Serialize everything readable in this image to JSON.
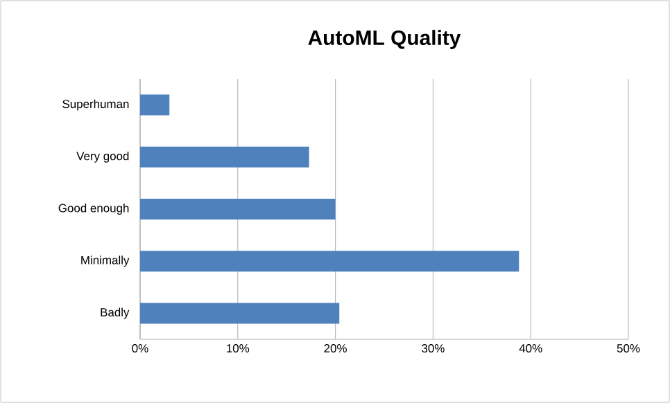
{
  "chart_data": {
    "type": "bar",
    "orientation": "horizontal",
    "title": "AutoML Quality",
    "categories": [
      "Superhuman",
      "Very good",
      "Good enough",
      "Minimally",
      "Badly"
    ],
    "values": [
      3.0,
      17.3,
      20.0,
      38.8,
      20.4
    ],
    "color": "#4f81bd",
    "xlim": [
      0,
      50
    ],
    "xticks": [
      {
        "value": 0,
        "label": "0%"
      },
      {
        "value": 10,
        "label": "10%"
      },
      {
        "value": 20,
        "label": "20%"
      },
      {
        "value": 30,
        "label": "30%"
      },
      {
        "value": 40,
        "label": "40%"
      },
      {
        "value": 50,
        "label": "50%"
      }
    ],
    "grid": "x"
  }
}
